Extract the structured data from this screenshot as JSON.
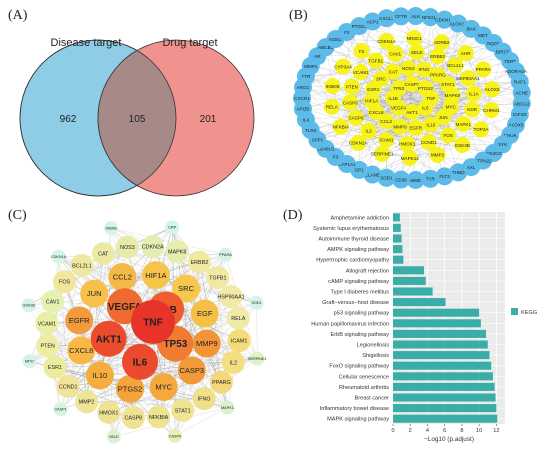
{
  "panels": {
    "a": {
      "label": "(A)",
      "disease_label": "Disease target",
      "drug_label": "Drug target",
      "disease_only": "962",
      "overlap": "105",
      "drug_only": "201",
      "colors": {
        "disease": "#8fcde6",
        "drug": "#f0938e",
        "overlap": "#a78a87"
      }
    },
    "b": {
      "label": "(B)",
      "center_nodes": [
        "TNF",
        "IL6",
        "AKT1",
        "VEGFA",
        "IL1B",
        "TP53",
        "CASP3",
        "PTGS2",
        "MYC",
        "JUN",
        "IL10",
        "EGFR",
        "MMP9",
        "CCL2",
        "CXCL8",
        "HIF1A",
        "ESR1",
        "SRC",
        "CAT",
        "NOS3",
        "IFNG",
        "PPARG",
        "STAT1",
        "MAPK8",
        "MAPK1",
        "FOS",
        "CCND1",
        "HMOX1",
        "ICAM1",
        "IL2",
        "CASP8",
        "CASP9",
        "PTEN",
        "VCAM1",
        "TGFB1",
        "CAV1",
        "SELE",
        "ERBB2",
        "BCL2L1",
        "HSP90AA1",
        "IL1A",
        "KDR",
        "GSK3B",
        "MMP2",
        "MAPK14",
        "SERPINE1",
        "CDKN2A",
        "NFKBIA",
        "RELA",
        "IKBKB",
        "CYP3A4",
        "F2",
        "CDKN1A",
        "NR3C1",
        "ADRB2",
        "AHR",
        "PPARA",
        "ALOX5",
        "CHRM1",
        "TOP2A"
      ],
      "outer_nodes": [
        "CXCR1",
        "ARG1",
        "TTR",
        "MMP1",
        "AR",
        "ABCB1",
        "NOS2",
        "F2",
        "PTGS1",
        "ACP1",
        "CXCL2",
        "CFTR",
        "ALK",
        "NFE2L2",
        "CDKN1B",
        "ALOX15",
        "BAX",
        "MET",
        "NQO1",
        "BIRC5",
        "TERT",
        "ADORA2A",
        "RAF1",
        "ACHE",
        "ABCG2",
        "IGF1R",
        "ALOX5",
        "CHUK",
        "SYK",
        "PIK3CG",
        "PTPN22",
        "AXL",
        "THBD",
        "FLT3",
        "TYR",
        "MME",
        "CD36",
        "SOD1",
        "ELANE",
        "GP1",
        "CYP1A1",
        "F3",
        "CD40LG",
        "SPP1",
        "TLR4",
        "IL4",
        "APOB"
      ]
    },
    "c": {
      "label": "(C)",
      "big_nodes": [
        {
          "name": "TNF",
          "color": "#e8332a"
        },
        {
          "name": "IL6",
          "color": "#ec4a2c"
        },
        {
          "name": "AKT1",
          "color": "#ec4b2c"
        },
        {
          "name": "VEGFA",
          "color": "#ef6a2f"
        },
        {
          "name": "IL1B",
          "color": "#ef5d2e"
        },
        {
          "name": "TP53",
          "color": "#f07c33"
        },
        {
          "name": "MMP9",
          "color": "#f39437"
        },
        {
          "name": "CASP3",
          "color": "#f29a3a"
        },
        {
          "name": "MYC",
          "color": "#f5a93c"
        },
        {
          "name": "PTGS2",
          "color": "#f4a43b"
        },
        {
          "name": "IL10",
          "color": "#f4ae3e"
        },
        {
          "name": "CXCL8",
          "color": "#f7b845"
        },
        {
          "name": "EGFR",
          "color": "#f39a3a"
        },
        {
          "name": "JUN",
          "color": "#f7c04a"
        },
        {
          "name": "CCL2",
          "color": "#f5ba45"
        },
        {
          "name": "HIF1A",
          "color": "#f7c44b"
        },
        {
          "name": "SRC",
          "color": "#f8c84c"
        },
        {
          "name": "EGF",
          "color": "#f6c048"
        },
        {
          "name": "ICAM1",
          "color": "#f4dc7a"
        },
        {
          "name": "IL2",
          "color": "#f5de80"
        },
        {
          "name": "PPARG",
          "color": "#f3d77a"
        },
        {
          "name": "IFNG",
          "color": "#efe18a"
        },
        {
          "name": "STAT1",
          "color": "#f0e493"
        },
        {
          "name": "NFKBIA",
          "color": "#eee393"
        },
        {
          "name": "CASP8",
          "color": "#eee394"
        },
        {
          "name": "HMOX1",
          "color": "#efe393"
        },
        {
          "name": "MMP2",
          "color": "#efe596"
        },
        {
          "name": "CCND1",
          "color": "#f0e498"
        },
        {
          "name": "ESR1",
          "color": "#ecec9d"
        },
        {
          "name": "PTEN",
          "color": "#eeeea3"
        },
        {
          "name": "VCAM1",
          "color": "#e9f0a6"
        },
        {
          "name": "CAV1",
          "color": "#e4f1b0"
        },
        {
          "name": "FOS",
          "color": "#f0e79c"
        },
        {
          "name": "BCL2L1",
          "color": "#eee8a0"
        },
        {
          "name": "CAT",
          "color": "#ece9a5"
        },
        {
          "name": "NOS3",
          "color": "#e8eba8"
        },
        {
          "name": "CDKN2A",
          "color": "#e4eeb2"
        },
        {
          "name": "MAPK8",
          "color": "#e6edad"
        },
        {
          "name": "ERBB2",
          "color": "#efe9a2"
        },
        {
          "name": "TGFB1",
          "color": "#efe9a5"
        },
        {
          "name": "HSP90AA1",
          "color": "#f1e9a4"
        },
        {
          "name": "RELA",
          "color": "#eeeba9"
        },
        {
          "name": "SERPINE1",
          "color": "#dff1c5"
        },
        {
          "name": "MAPK1",
          "color": "#d9f3d1"
        },
        {
          "name": "CASP9",
          "color": "#e7efb7"
        },
        {
          "name": "SELE",
          "color": "#dbf2d6"
        },
        {
          "name": "CASP1",
          "color": "#d6f4e0"
        },
        {
          "name": "MPO",
          "color": "#d4f4e6"
        },
        {
          "name": "GSK3B",
          "color": "#d4f4e6"
        },
        {
          "name": "CDKN1A",
          "color": "#d4f4e6"
        },
        {
          "name": "IKBKB",
          "color": "#d4f4e6"
        },
        {
          "name": "CRP",
          "color": "#d4f4e6"
        },
        {
          "name": "PPARA",
          "color": "#d4f4e6"
        },
        {
          "name": "SOD1",
          "color": "#d4f4e6"
        }
      ]
    },
    "d": {
      "label": "(D)",
      "legend": "KEGG",
      "bar_color": "#3aada8"
    }
  },
  "chart_data": {
    "type": "bar",
    "orientation": "horizontal",
    "categories": [
      "Amphetamine addiction",
      "Systemic lupus erythematosus",
      "Autoimmune thyroid disease",
      "AMPK signaling pathway",
      "Hypertrophic cardiomyopathy",
      "Allograft rejection",
      "cAMP signaling pathway",
      "Type I diabetes mellitus",
      "Graft−versus−host disease",
      "p53 signaling pathway",
      "Human papillomavirus infection",
      "ErbB signaling pathway",
      "Legionellosis",
      "Shigellosis",
      "FoxO signaling pathway",
      "Cellular senescence",
      "Rheumatoid arthritis",
      "Breast cancer",
      "Inflammatory bowel disease",
      "MAPK signaling pathway"
    ],
    "values": [
      0.8,
      0.9,
      1.0,
      1.1,
      1.2,
      3.6,
      3.8,
      4.6,
      6.1,
      10.0,
      10.2,
      10.8,
      11.0,
      11.2,
      11.4,
      11.6,
      11.8,
      11.9,
      12.0,
      12.1
    ],
    "xlabel": "−Log10 (p.adjust)",
    "xlim": [
      0,
      13
    ],
    "xticks": [
      0,
      2,
      4,
      6,
      8,
      10,
      12
    ],
    "legend": "KEGG",
    "grid": true
  }
}
